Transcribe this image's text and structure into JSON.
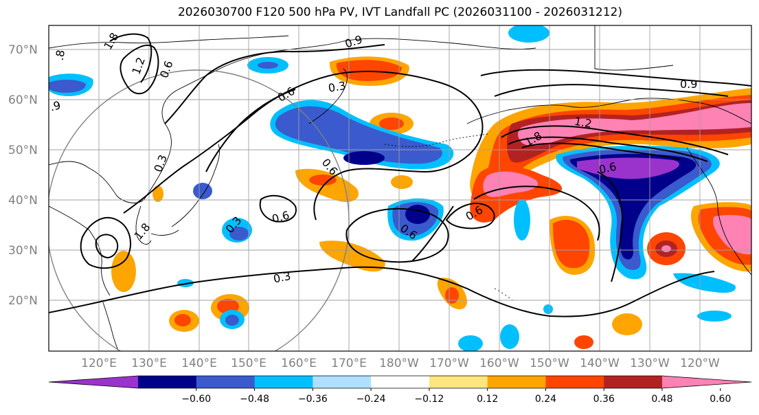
{
  "title": "2026030700 F120 500 hPa PV, IVT Landfall PC (2026031100 - 2026031212)",
  "map": {
    "lat_labels": [
      "70°N",
      "60°N",
      "50°N",
      "40°N",
      "30°N",
      "20°N"
    ],
    "lon_labels": [
      "120°E",
      "130°E",
      "140°E",
      "150°E",
      "160°E",
      "170°E",
      "180°W",
      "170°W",
      "160°W",
      "150°W",
      "140°W",
      "130°W",
      "120°W"
    ],
    "contour_labels": [
      "0.9",
      "0.6",
      "0.3",
      "1.2",
      "1.8",
      "0.6",
      "0.3",
      "0.6",
      "0.6",
      "0.3",
      "0.6",
      "0.6",
      "0.9",
      "1.2",
      "1.8",
      "0.6",
      "0.3",
      ".9",
      ".8",
      "1.8"
    ],
    "grid": true,
    "projection": "lat-lon",
    "lon_range": [
      "112°E",
      "110°W"
    ],
    "lat_range": [
      "10°N",
      "75°N"
    ]
  },
  "colorbar": {
    "ticks": [
      "−0.60",
      "−0.48",
      "−0.36",
      "−0.24",
      "−0.12",
      "0.12",
      "0.24",
      "0.36",
      "0.48",
      "0.60"
    ],
    "colors": [
      "#9933cc",
      "#00008b",
      "#3a5acd",
      "#00bfff",
      "#b0e0ff",
      "#ffffff",
      "#ffe57f",
      "#ffa500",
      "#ff4500",
      "#b22222",
      "#ff82b4"
    ],
    "extend": "both"
  }
}
